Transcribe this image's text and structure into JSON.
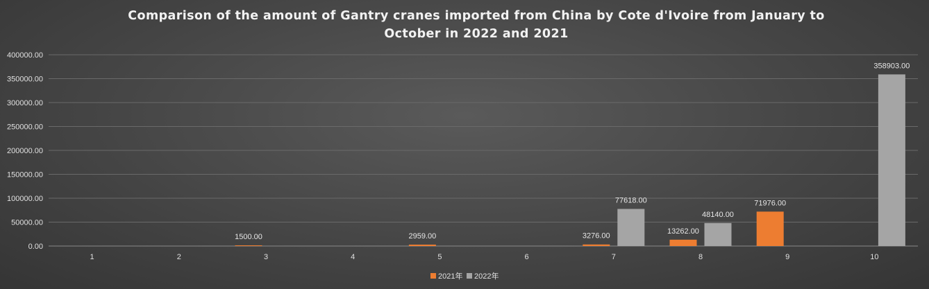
{
  "chart_data": {
    "type": "bar",
    "title": "Comparison of the amount of Gantry cranes imported from China by Cote d'Ivoire from January to October in 2022 and 2021",
    "xlabel": "",
    "ylabel": "",
    "categories": [
      "1",
      "2",
      "3",
      "4",
      "5",
      "6",
      "7",
      "8",
      "9",
      "10"
    ],
    "series": [
      {
        "name": "2021年",
        "color": "#ed7d31",
        "values": [
          0,
          0,
          1500,
          0,
          2959,
          0,
          3276,
          13262,
          71976,
          0
        ]
      },
      {
        "name": "2022年",
        "color": "#a5a5a5",
        "values": [
          0,
          0,
          0,
          0,
          0,
          0,
          77618,
          48140,
          0,
          358903
        ]
      }
    ],
    "data_labels": [
      [
        null,
        null,
        "1500.00",
        null,
        "2959.00",
        null,
        "3276.00",
        "13262.00",
        "71976.00",
        null
      ],
      [
        null,
        null,
        null,
        null,
        null,
        null,
        "77618.00",
        "48140.00",
        null,
        "358903.00"
      ]
    ],
    "ylim": [
      0,
      400000
    ],
    "yticks": [
      0,
      50000,
      100000,
      150000,
      200000,
      250000,
      300000,
      350000,
      400000
    ],
    "ytick_labels": [
      "0.00",
      "50000.00",
      "100000.00",
      "150000.00",
      "200000.00",
      "250000.00",
      "300000.00",
      "350000.00",
      "400000.00"
    ],
    "grid": true,
    "legend_position": "bottom"
  }
}
